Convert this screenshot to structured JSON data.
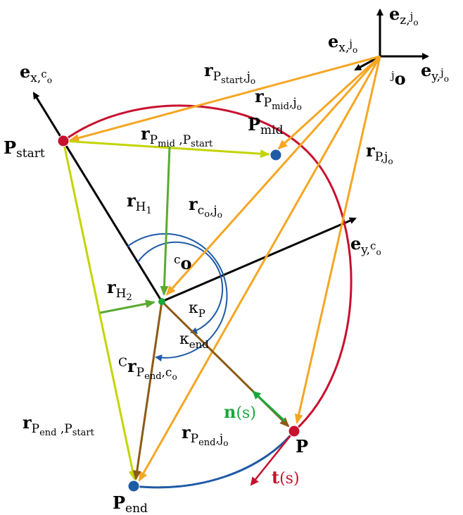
{
  "colors": {
    "orange": "#f5a623",
    "red": "#c8102e",
    "lime": "#c3d400",
    "green": "#5aaa32",
    "brown": "#8b5a14",
    "blue": "#1f5aa6",
    "bright_green": "#19a83c",
    "black": "#000000"
  },
  "labels": {
    "ez_jo": {
      "main": "e",
      "sub": "z,",
      "subsub": "j",
      "subsubsub": "o"
    },
    "ex_jo": {
      "main": "e",
      "sub": "x,",
      "subsub": "j",
      "subsubsub": "o"
    },
    "ey_jo": {
      "main": "e",
      "sub": "y,",
      "subsub": "j",
      "subsubsub": "o"
    },
    "jo": {
      "pre": "j",
      "main": "o"
    },
    "ex_co": {
      "main": "e",
      "sub": "x,",
      "subsub": "c",
      "subsubsub": "o"
    },
    "ey_co": {
      "main": "e",
      "sub": "y,",
      "subsub": "c",
      "subsubsub": "o"
    },
    "co": {
      "pre": "c",
      "main": "o"
    },
    "p_start": {
      "main": "P",
      "sub": "start"
    },
    "p_mid": {
      "main": "P",
      "sub": "mid"
    },
    "p_end": {
      "main": "P",
      "sub": "end"
    },
    "p": {
      "main": "P"
    },
    "r_pstart_jo": {
      "main": "r",
      "sub": "P",
      "subsub": "start",
      "tail": ",j",
      "tailsub": "o"
    },
    "r_pmid_jo": {
      "main": "r",
      "sub": "P",
      "subsub": "mid",
      "tail": ",j",
      "tailsub": "o"
    },
    "r_p_jo": {
      "main": "r",
      "sub": "P,j",
      "subsub": "o"
    },
    "r_pmid_pstart": {
      "main": "r",
      "sub": "P",
      "subsub": "mid",
      "tail": " ,P",
      "tailsub": "start"
    },
    "r_h1": {
      "main": "r",
      "sub": "H",
      "subsub": "1"
    },
    "r_h2": {
      "main": "r",
      "sub": "H",
      "subsub": "2"
    },
    "r_co_jo": {
      "main": "r",
      "sub": "c",
      "subsub": "o",
      "tail": ",j",
      "tailsub": "o"
    },
    "kappa_p": {
      "main": "κ",
      "sub": "P"
    },
    "kappa_end": {
      "main": "κ",
      "sub": "end"
    },
    "cr_pend_co": {
      "pre": "C",
      "main": "r",
      "sub": "P",
      "subsub": "end",
      "tail": ",c",
      "tailsub": "o"
    },
    "r_pend_pstart": {
      "main": "r",
      "sub": "P",
      "subsub": "end",
      "tail": " ,P",
      "tailsub": "start"
    },
    "r_pend_jo": {
      "main": "r",
      "sub": "P",
      "subsub": "end",
      "tail": ",j",
      "tailsub": "o"
    },
    "n_s": {
      "main": "n",
      "arg": "(s)"
    },
    "t_s": {
      "main": "t",
      "arg": "(s)"
    }
  }
}
